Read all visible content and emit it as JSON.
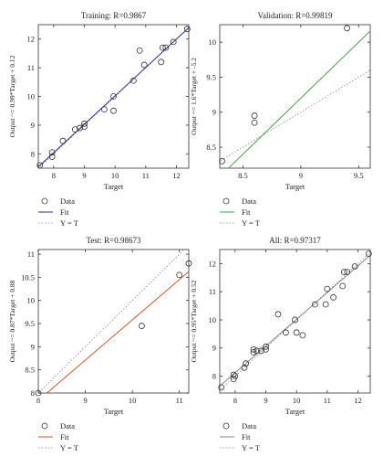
{
  "chart_data": [
    {
      "type": "scatter",
      "title": "Training: R=0.9867",
      "xlabel": "Target",
      "ylabel": "Output ~= 0.99*Target + 0.12",
      "xlim": [
        7.5,
        12.4
      ],
      "ylim": [
        7.5,
        12.5
      ],
      "xticks": [
        8,
        9,
        10,
        11,
        12
      ],
      "yticks": [
        8,
        9,
        10,
        11,
        12
      ],
      "fit": {
        "slope": 0.99,
        "intercept": 0.12,
        "color": "#2828b4"
      },
      "identity_color": "#888888",
      "points": [
        [
          7.55,
          7.6
        ],
        [
          7.95,
          7.9
        ],
        [
          7.95,
          8.05
        ],
        [
          8.3,
          8.45
        ],
        [
          8.7,
          8.85
        ],
        [
          8.85,
          8.9
        ],
        [
          9.0,
          8.95
        ],
        [
          9.0,
          9.05
        ],
        [
          9.65,
          9.55
        ],
        [
          9.95,
          10.0
        ],
        [
          9.95,
          9.5
        ],
        [
          10.6,
          10.55
        ],
        [
          10.8,
          11.6
        ],
        [
          10.95,
          11.1
        ],
        [
          11.5,
          11.2
        ],
        [
          11.55,
          11.7
        ],
        [
          11.65,
          11.7
        ],
        [
          11.9,
          11.9
        ],
        [
          12.35,
          12.35
        ]
      ],
      "legend": [
        "Data",
        "Fit",
        "Y = T"
      ]
    },
    {
      "type": "scatter",
      "title": "Validation: R=0.99819",
      "xlabel": "Target",
      "ylabel": "Output ~= 1.6*Target + -5.2",
      "xlim": [
        8.3,
        9.6
      ],
      "ylim": [
        8.2,
        10.25
      ],
      "xticks": [
        8.5,
        9,
        9.5
      ],
      "yticks": [
        8.5,
        9,
        9.5,
        10
      ],
      "fit": {
        "slope": 1.6,
        "intercept": -5.2,
        "color": "#3caa3c"
      },
      "identity_color": "#888888",
      "points": [
        [
          8.32,
          8.3
        ],
        [
          8.6,
          8.85
        ],
        [
          8.6,
          8.95
        ],
        [
          9.4,
          10.2
        ]
      ],
      "legend": [
        "Data",
        "Fit",
        "Y = T"
      ]
    },
    {
      "type": "scatter",
      "title": "Test: R=0.98673",
      "xlabel": "Target",
      "ylabel": "Output ~= 0.87*Target + 0.88",
      "xlim": [
        8.0,
        11.2
      ],
      "ylim": [
        8.0,
        11.1
      ],
      "xticks": [
        8,
        9,
        10,
        11
      ],
      "yticks": [
        8,
        8.5,
        9,
        9.5,
        10,
        10.5,
        11
      ],
      "fit": {
        "slope": 0.87,
        "intercept": 0.88,
        "color": "#e0541e"
      },
      "identity_color": "#888888",
      "points": [
        [
          8.0,
          8.0
        ],
        [
          10.2,
          9.45
        ],
        [
          11.0,
          10.55
        ],
        [
          11.2,
          10.8
        ]
      ],
      "legend": [
        "Data",
        "Fit",
        "Y = T"
      ]
    },
    {
      "type": "scatter",
      "title": "All: R=0.97317",
      "xlabel": "Target",
      "ylabel": "Output ~= 0.95*Target + 0.52",
      "xlim": [
        7.5,
        12.4
      ],
      "ylim": [
        7.4,
        12.5
      ],
      "xticks": [
        8,
        9,
        10,
        11,
        12
      ],
      "yticks": [
        8,
        9,
        10,
        11,
        12
      ],
      "fit": {
        "slope": 0.95,
        "intercept": 0.52,
        "color": "#888888"
      },
      "identity_color": "#888888",
      "points": [
        [
          7.55,
          7.6
        ],
        [
          7.95,
          7.9
        ],
        [
          7.95,
          8.05
        ],
        [
          8.0,
          8.0
        ],
        [
          8.3,
          8.3
        ],
        [
          8.35,
          8.45
        ],
        [
          8.6,
          8.85
        ],
        [
          8.6,
          8.95
        ],
        [
          8.7,
          8.9
        ],
        [
          8.85,
          8.9
        ],
        [
          9.0,
          8.95
        ],
        [
          9.0,
          9.05
        ],
        [
          9.4,
          10.2
        ],
        [
          9.65,
          9.55
        ],
        [
          9.95,
          10.0
        ],
        [
          10.0,
          9.55
        ],
        [
          10.2,
          9.45
        ],
        [
          10.6,
          10.55
        ],
        [
          10.95,
          10.55
        ],
        [
          11.0,
          11.1
        ],
        [
          11.2,
          10.8
        ],
        [
          11.5,
          11.2
        ],
        [
          11.55,
          11.7
        ],
        [
          11.65,
          11.7
        ],
        [
          11.9,
          11.9
        ],
        [
          12.35,
          12.35
        ]
      ],
      "legend": [
        "Data",
        "Fit",
        "Y = T"
      ]
    }
  ]
}
